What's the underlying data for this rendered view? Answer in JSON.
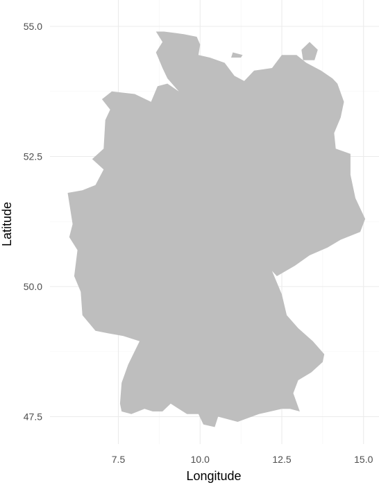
{
  "chart_data": {
    "type": "map",
    "region": "Germany",
    "xlabel": "Longitude",
    "ylabel": "Latitude",
    "xlim": [
      5.7,
      15.5
    ],
    "ylim": [
      47.0,
      55.4
    ],
    "x_ticks": [
      7.5,
      10.0,
      12.5,
      15.0
    ],
    "y_ticks": [
      47.5,
      50.0,
      52.5,
      55.0
    ],
    "x_tick_labels": [
      "7.5",
      "10.0",
      "12.5",
      "15.0"
    ],
    "y_tick_labels": [
      "47.5",
      "50.0",
      "52.5",
      "55.0"
    ],
    "grid": true,
    "fill_color": "#bebebe",
    "background": "#ffffff",
    "outline": [
      [
        8.9,
        54.9
      ],
      [
        9.5,
        54.85
      ],
      [
        9.9,
        54.8
      ],
      [
        10.0,
        54.65
      ],
      [
        9.95,
        54.45
      ],
      [
        10.3,
        54.4
      ],
      [
        10.75,
        54.3
      ],
      [
        11.05,
        54.05
      ],
      [
        11.35,
        53.95
      ],
      [
        11.65,
        54.15
      ],
      [
        12.2,
        54.2
      ],
      [
        12.5,
        54.45
      ],
      [
        12.95,
        54.45
      ],
      [
        13.25,
        54.3
      ],
      [
        13.7,
        54.15
      ],
      [
        14.05,
        54.0
      ],
      [
        14.2,
        53.9
      ],
      [
        14.4,
        53.55
      ],
      [
        14.3,
        53.25
      ],
      [
        14.1,
        52.95
      ],
      [
        14.15,
        52.65
      ],
      [
        14.6,
        52.55
      ],
      [
        14.6,
        52.15
      ],
      [
        14.75,
        51.7
      ],
      [
        15.05,
        51.3
      ],
      [
        14.9,
        51.05
      ],
      [
        14.3,
        50.9
      ],
      [
        13.9,
        50.75
      ],
      [
        13.35,
        50.6
      ],
      [
        12.9,
        50.4
      ],
      [
        12.35,
        50.2
      ],
      [
        12.2,
        50.3
      ],
      [
        12.5,
        49.85
      ],
      [
        12.65,
        49.45
      ],
      [
        13.0,
        49.2
      ],
      [
        13.45,
        48.95
      ],
      [
        13.8,
        48.7
      ],
      [
        13.75,
        48.55
      ],
      [
        13.4,
        48.35
      ],
      [
        13.0,
        48.2
      ],
      [
        12.85,
        47.95
      ],
      [
        13.05,
        47.6
      ],
      [
        12.75,
        47.65
      ],
      [
        12.5,
        47.65
      ],
      [
        11.8,
        47.55
      ],
      [
        11.15,
        47.4
      ],
      [
        10.55,
        47.5
      ],
      [
        10.45,
        47.3
      ],
      [
        10.1,
        47.35
      ],
      [
        9.95,
        47.55
      ],
      [
        9.6,
        47.55
      ],
      [
        9.1,
        47.75
      ],
      [
        8.85,
        47.6
      ],
      [
        8.55,
        47.6
      ],
      [
        8.3,
        47.65
      ],
      [
        7.9,
        47.55
      ],
      [
        7.6,
        47.6
      ],
      [
        7.55,
        47.75
      ],
      [
        7.6,
        48.15
      ],
      [
        7.8,
        48.5
      ],
      [
        8.15,
        48.95
      ],
      [
        7.65,
        49.05
      ],
      [
        7.2,
        49.1
      ],
      [
        6.8,
        49.15
      ],
      [
        6.4,
        49.45
      ],
      [
        6.35,
        49.9
      ],
      [
        6.15,
        50.2
      ],
      [
        6.25,
        50.7
      ],
      [
        6.0,
        50.95
      ],
      [
        6.1,
        51.2
      ],
      [
        5.95,
        51.8
      ],
      [
        6.4,
        51.85
      ],
      [
        6.8,
        51.95
      ],
      [
        7.05,
        52.25
      ],
      [
        6.7,
        52.45
      ],
      [
        7.05,
        52.65
      ],
      [
        7.1,
        53.2
      ],
      [
        7.25,
        53.4
      ],
      [
        7.0,
        53.6
      ],
      [
        7.3,
        53.75
      ],
      [
        8.0,
        53.7
      ],
      [
        8.5,
        53.55
      ],
      [
        8.7,
        53.85
      ],
      [
        9.0,
        53.9
      ],
      [
        9.35,
        53.75
      ],
      [
        9.0,
        54.0
      ],
      [
        8.85,
        54.2
      ],
      [
        8.65,
        54.5
      ],
      [
        8.85,
        54.7
      ],
      [
        8.65,
        54.9
      ],
      [
        8.9,
        54.9
      ]
    ],
    "islands": [
      [
        [
          13.1,
          54.55
        ],
        [
          13.35,
          54.7
        ],
        [
          13.6,
          54.55
        ],
        [
          13.5,
          54.35
        ],
        [
          13.15,
          54.35
        ],
        [
          13.1,
          54.55
        ]
      ],
      [
        [
          11.0,
          54.5
        ],
        [
          11.3,
          54.45
        ],
        [
          11.25,
          54.4
        ],
        [
          10.95,
          54.4
        ],
        [
          11.0,
          54.5
        ]
      ]
    ]
  }
}
